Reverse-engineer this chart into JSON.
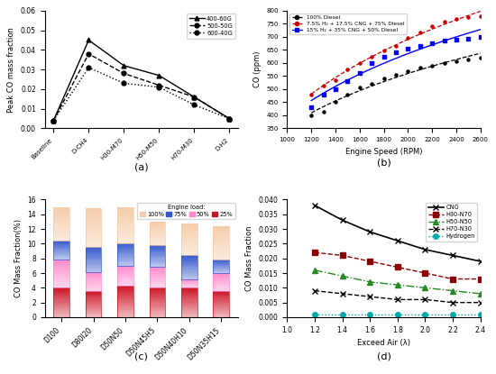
{
  "panel_a": {
    "categories": [
      "Baseline",
      "D-CH4",
      "H30-M70",
      "H50-M50",
      "H70-M30",
      "D-H2"
    ],
    "series": {
      "400-60G": [
        0.004,
        0.045,
        0.032,
        0.027,
        0.016,
        0.005
      ],
      "500-50G": [
        0.004,
        0.038,
        0.028,
        0.022,
        0.016,
        0.005
      ],
      "600-40G": [
        0.004,
        0.031,
        0.023,
        0.021,
        0.012,
        0.005
      ]
    },
    "ylabel": "Peak CO mass fraction",
    "ylim": [
      0,
      0.06
    ],
    "yticks": [
      0,
      0.01,
      0.02,
      0.03,
      0.04,
      0.05,
      0.06
    ],
    "label": "(a)"
  },
  "panel_b": {
    "rpm": [
      1200,
      1300,
      1400,
      1500,
      1600,
      1700,
      1800,
      1900,
      2000,
      2100,
      2200,
      2300,
      2400,
      2500,
      2600
    ],
    "diesel": [
      400,
      415,
      450,
      480,
      505,
      520,
      540,
      555,
      570,
      582,
      590,
      600,
      608,
      615,
      620
    ],
    "tri_fuel_low": [
      430,
      478,
      500,
      530,
      560,
      600,
      625,
      640,
      655,
      665,
      675,
      685,
      688,
      692,
      700
    ],
    "tri_fuel_high": [
      480,
      515,
      535,
      575,
      600,
      625,
      648,
      665,
      695,
      715,
      740,
      757,
      768,
      776,
      780
    ],
    "xlabel": "Engine Speed (RPM)",
    "ylabel": "CO (ppm)",
    "ylim": [
      350,
      800
    ],
    "xlim": [
      1000,
      2600
    ],
    "label": "(b)",
    "legend": [
      "100% Diesel",
      "7.5% H₂ + 17.5% CNG + 75% Diesel",
      "15% H₂ + 35% CNG + 50% Diesel"
    ]
  },
  "panel_c": {
    "categories": [
      "D100",
      "D80I20",
      "D50N50",
      "D50N45H5",
      "D50N40H10",
      "D50N35H15"
    ],
    "load_100": [
      15.0,
      14.8,
      15.0,
      13.0,
      12.8,
      12.4
    ],
    "load_75": [
      10.4,
      9.5,
      10.1,
      9.8,
      8.4,
      7.9
    ],
    "load_50": [
      7.9,
      6.1,
      7.0,
      6.9,
      5.2,
      6.0
    ],
    "load_25": [
      4.0,
      3.6,
      4.3,
      4.1,
      4.0,
      3.6
    ],
    "ylabel": "CO Mass Fraction(%)",
    "ylim": [
      0,
      16
    ],
    "label": "(c)",
    "color_100": "#F5CBA7",
    "color_75": "#3357CC",
    "color_50": "#FF88CC",
    "color_25": "#CC1122"
  },
  "panel_d": {
    "exceed_air": [
      1.2,
      1.4,
      1.6,
      1.8,
      2.0,
      2.2,
      2.4
    ],
    "CNG": [
      0.038,
      0.033,
      0.029,
      0.026,
      0.023,
      0.021,
      0.019
    ],
    "H30_N70": [
      0.022,
      0.021,
      0.019,
      0.017,
      0.015,
      0.013,
      0.013
    ],
    "H50_N50": [
      0.016,
      0.014,
      0.012,
      0.011,
      0.01,
      0.009,
      0.008
    ],
    "H70_N30": [
      0.009,
      0.008,
      0.007,
      0.006,
      0.006,
      0.005,
      0.005
    ],
    "Hydrogen": [
      0.001,
      0.001,
      0.001,
      0.001,
      0.001,
      0.001,
      0.001
    ],
    "xlabel": "Exceed Air (λ)",
    "ylabel": "CO Mass Fraction",
    "ylim": [
      0,
      0.04
    ],
    "xlim": [
      1.0,
      2.4
    ],
    "label": "(d)",
    "legend": [
      "CNG",
      "H30-N70",
      "H50-N50",
      "H70-N30",
      "Hydrogen"
    ]
  }
}
